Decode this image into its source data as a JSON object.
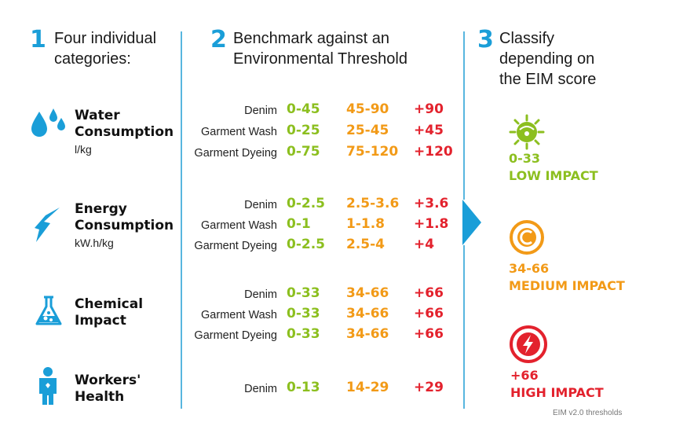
{
  "steps": [
    {
      "number": "1",
      "heading": "Four individual\ncategories:"
    },
    {
      "number": "2",
      "heading": "Benchmark against an\nEnvironmental  Threshold"
    },
    {
      "number": "3",
      "heading": "Classify\ndepending on\nthe EIM score"
    }
  ],
  "categories": [
    {
      "title": "Water\nConsumption",
      "unit": "l/kg",
      "icon": "water-drops-icon",
      "rows": [
        {
          "label": "Denim",
          "low": "0-45",
          "medium": "45-90",
          "high": "+90"
        },
        {
          "label": "Garment Wash",
          "low": "0-25",
          "medium": "25-45",
          "high": "+45"
        },
        {
          "label": "Garment Dyeing",
          "low": "0-75",
          "medium": "75-120",
          "high": "+120"
        }
      ]
    },
    {
      "title": "Energy\nConsumption",
      "unit": "kW.h/kg",
      "icon": "lightning-bolt-icon",
      "rows": [
        {
          "label": "Denim",
          "low": "0-2.5",
          "medium": "2.5-3.6",
          "high": "+3.6"
        },
        {
          "label": "Garment Wash",
          "low": "0-1",
          "medium": "1-1.8",
          "high": "+1.8"
        },
        {
          "label": "Garment Dyeing",
          "low": "0-2.5",
          "medium": "2.5-4",
          "high": "+4"
        }
      ]
    },
    {
      "title": "Chemical\nImpact",
      "unit": "",
      "icon": "flask-icon",
      "rows": [
        {
          "label": "Denim",
          "low": "0-33",
          "medium": "34-66",
          "high": "+66"
        },
        {
          "label": "Garment Wash",
          "low": "0-33",
          "medium": "34-66",
          "high": "+66"
        },
        {
          "label": "Garment Dyeing",
          "low": "0-33",
          "medium": "34-66",
          "high": "+66"
        }
      ]
    },
    {
      "title": "Workers'\nHealth",
      "unit": "",
      "icon": "worker-icon",
      "rows": [
        {
          "label": "Denim",
          "low": "0-13",
          "medium": "14-29",
          "high": "+29"
        }
      ]
    }
  ],
  "classification": [
    {
      "range": "0-33",
      "label": "LOW IMPACT",
      "color": "#8cbf1f",
      "icon": "low-impact-sun-icon"
    },
    {
      "range": "34-66",
      "label": "MEDIUM IMPACT",
      "color": "#f29a17",
      "icon": "medium-impact-icon"
    },
    {
      "range": "+66",
      "label": "HIGH IMPACT",
      "color": "#e3222d",
      "icon": "high-impact-bolt-icon"
    }
  ],
  "colors": {
    "accent": "#1a9ed8",
    "low": "#8cbf1f",
    "medium": "#f29a17",
    "high": "#e3222d"
  },
  "footnote": "EIM v2.0 thresholds"
}
